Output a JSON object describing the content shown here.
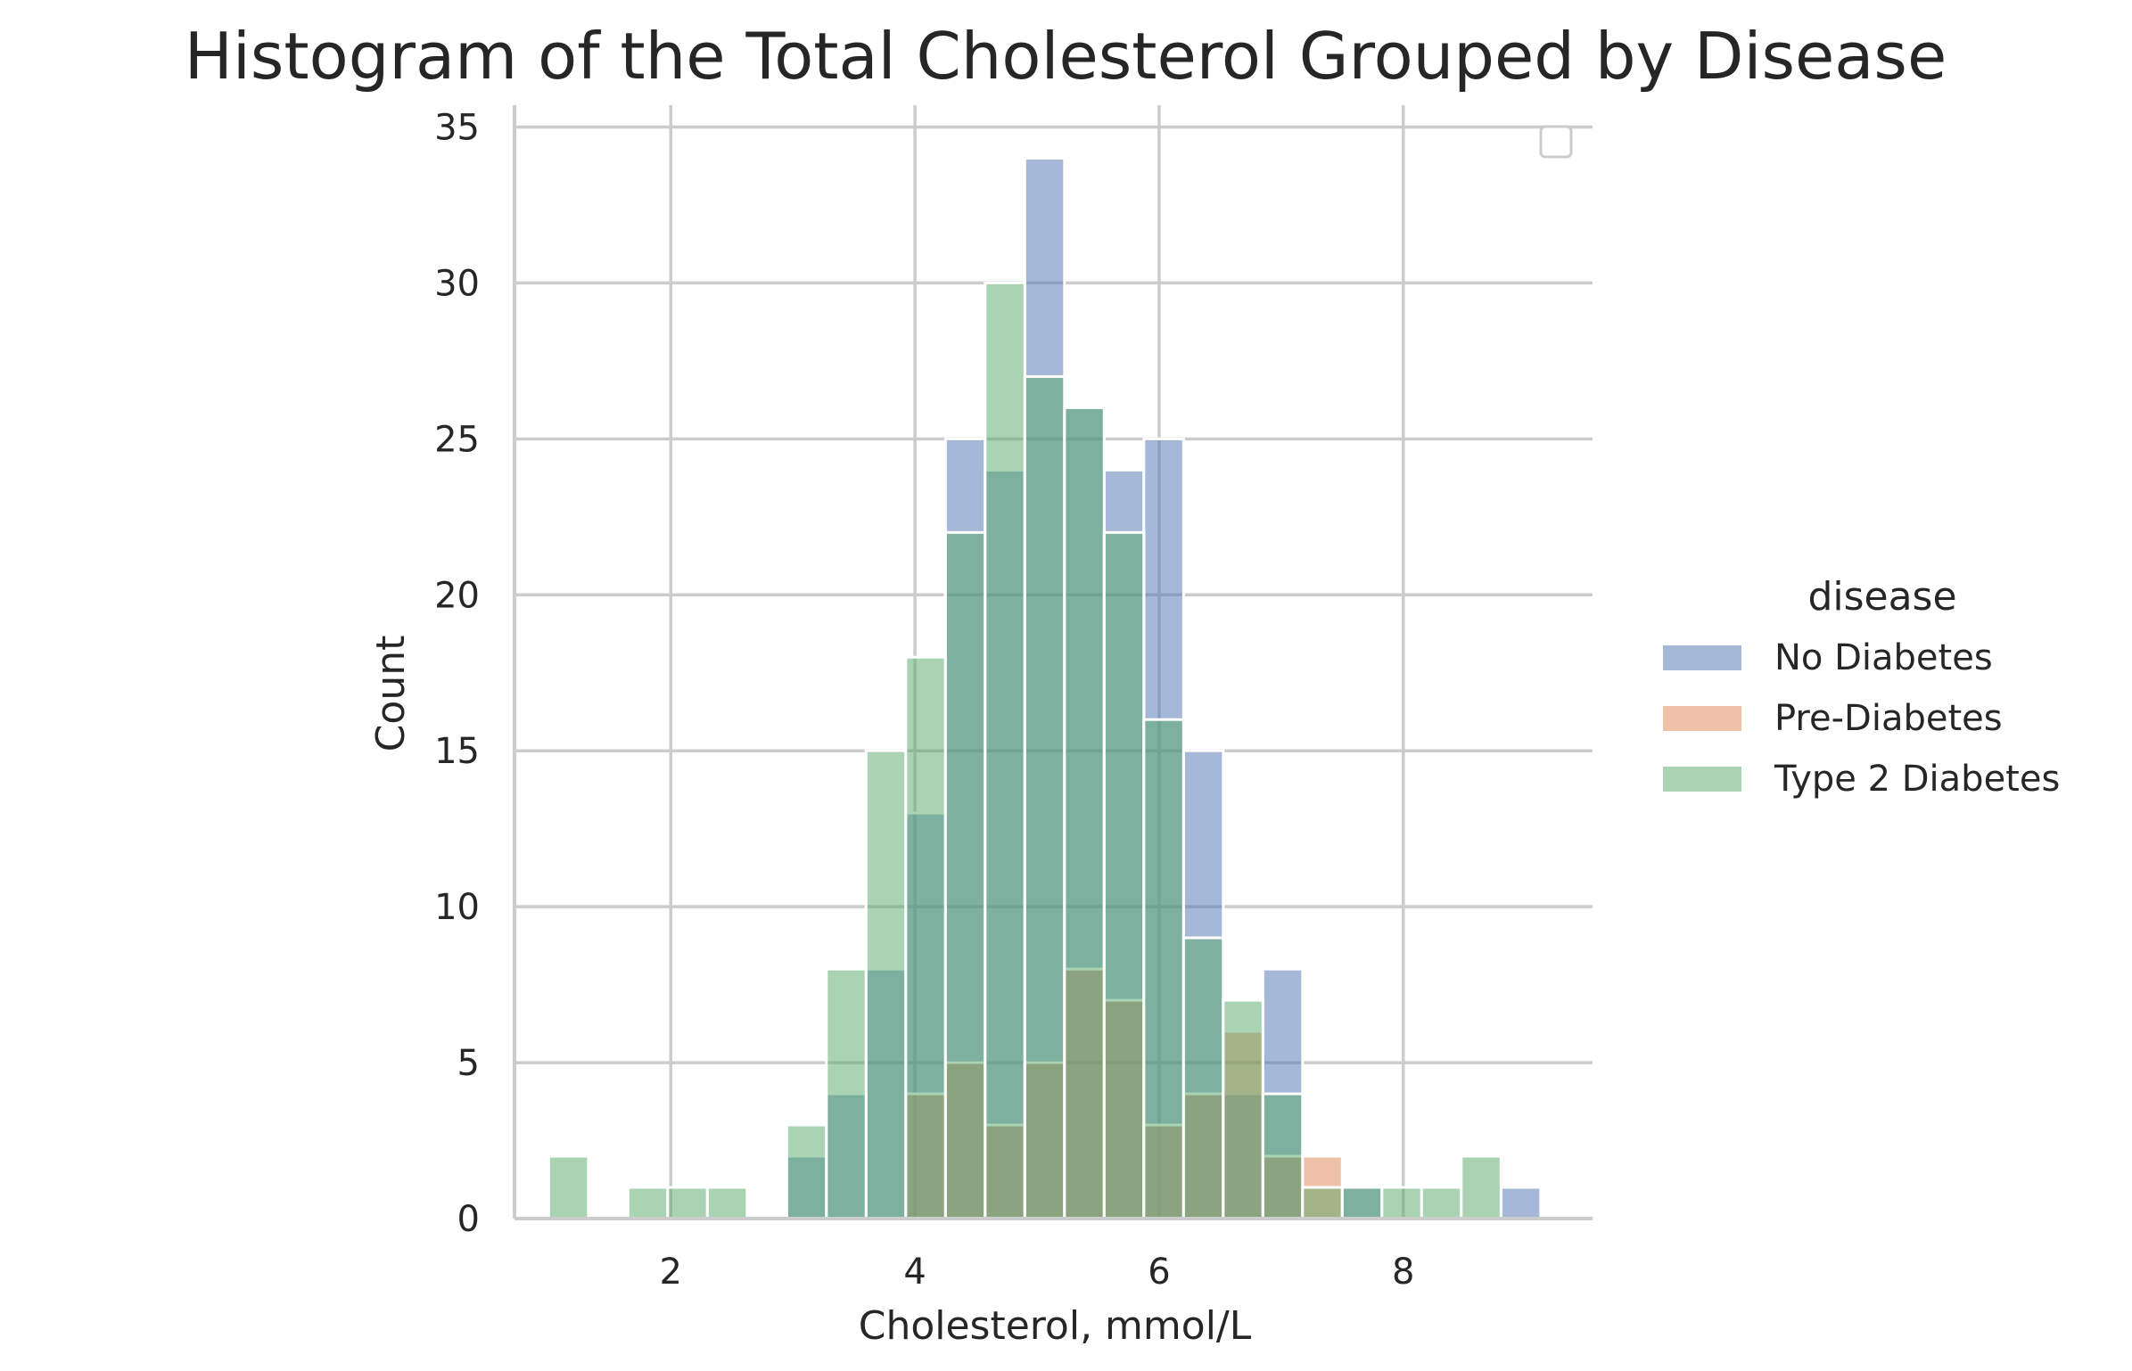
{
  "chart_data": {
    "type": "bar",
    "title": "Histogram of the Total Cholesterol Grouped by Disease",
    "xlabel": "Cholesterol, mmol/L",
    "ylabel": "Count",
    "xlim": [
      0.72,
      9.55
    ],
    "ylim": [
      0,
      35.7
    ],
    "xticks": [
      2,
      4,
      6,
      8
    ],
    "yticks": [
      0,
      5,
      10,
      15,
      20,
      25,
      30,
      35
    ],
    "bin_edges": [
      1.0,
      1.325,
      1.65,
      1.975,
      2.3,
      2.625,
      2.95,
      3.275,
      3.6,
      3.925,
      4.25,
      4.575,
      4.9,
      5.225,
      5.55,
      5.875,
      6.2,
      6.525,
      6.85,
      7.175,
      7.5,
      7.825,
      8.15,
      8.475,
      8.8,
      9.125
    ],
    "grid": true,
    "legend_position": "right",
    "legend": {
      "title": "disease",
      "items": [
        "No Diabetes",
        "Pre-Diabetes",
        "Type 2 Diabetes"
      ]
    },
    "series": [
      {
        "name": "No Diabetes",
        "color": "#4c72b0",
        "values": [
          0,
          0,
          0,
          0,
          0,
          0,
          2,
          4,
          8,
          13,
          25,
          24,
          34,
          26,
          24,
          25,
          15,
          4,
          8,
          0,
          1,
          0,
          0,
          0,
          1
        ]
      },
      {
        "name": "Pre-Diabetes",
        "color": "#dd8452",
        "values": [
          0,
          0,
          0,
          0,
          0,
          0,
          0,
          0,
          0,
          4,
          5,
          3,
          5,
          8,
          7,
          3,
          4,
          6,
          2,
          2,
          0,
          0,
          0,
          0,
          0
        ]
      },
      {
        "name": "Type 2 Diabetes",
        "color": "#55a868",
        "values": [
          2,
          0,
          1,
          1,
          1,
          0,
          3,
          8,
          15,
          18,
          22,
          30,
          27,
          26,
          22,
          16,
          9,
          7,
          4,
          1,
          1,
          1,
          1,
          2,
          0
        ]
      }
    ]
  }
}
